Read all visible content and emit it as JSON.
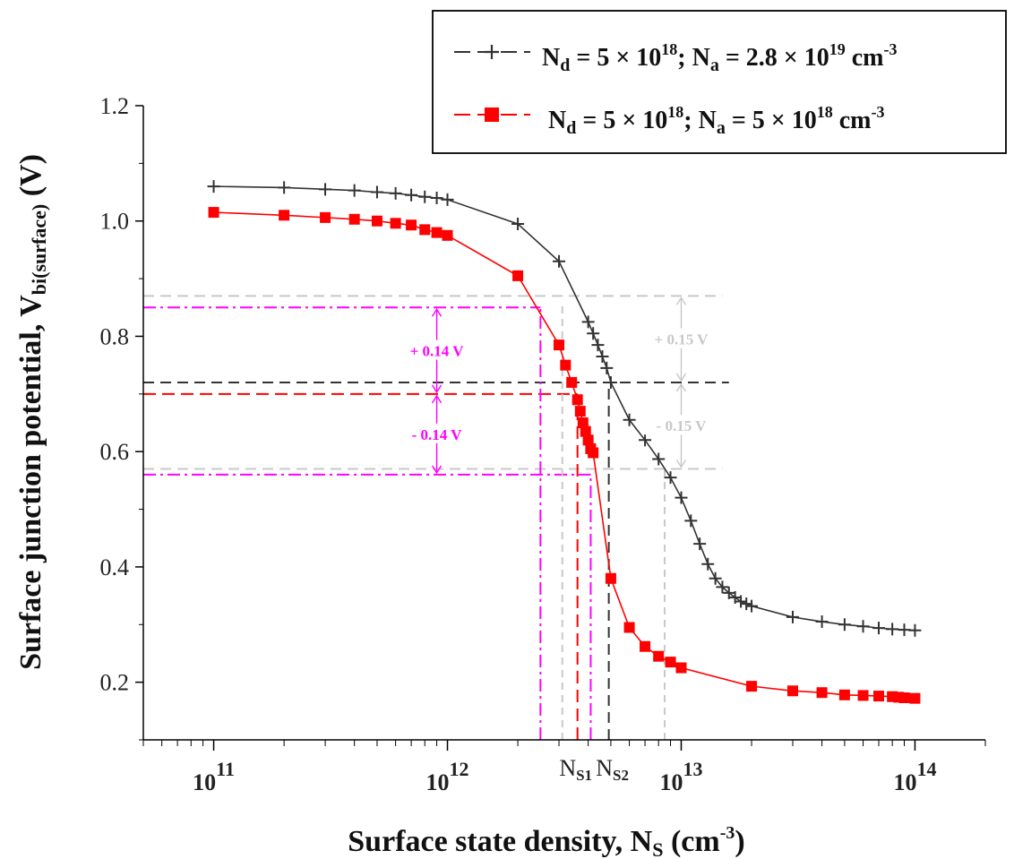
{
  "chart_data": {
    "type": "line",
    "xscale": "log",
    "xlim": [
      50000000000.0,
      200000000000000.0
    ],
    "ylim": [
      0.1,
      1.2
    ],
    "yticks": [
      "0.2",
      "0.4",
      "0.6",
      "0.8",
      "1.0",
      "1.2"
    ],
    "xticks": [
      {
        "base": "10",
        "exp": "11",
        "value": 100000000000.0
      },
      {
        "base": "10",
        "exp": "12",
        "value": 1000000000000.0
      },
      {
        "base": "10",
        "exp": "13",
        "value": 10000000000000.0
      },
      {
        "base": "10",
        "exp": "14",
        "value": 100000000000000.0
      }
    ],
    "xlabel": {
      "main": "Surface state density, N",
      "sub": "S",
      "unit_open": " (cm",
      "sup": "-3",
      "unit_close": ")"
    },
    "ylabel": {
      "main": "Surface junction potential, V",
      "sub": "bi(surface)",
      "unit": " (V)"
    },
    "legend_position": "top-right",
    "series": [
      {
        "name": "N_d = 5 × 10^18; N_a = 2.8 × 10^19 cm^-3",
        "legend_parts": {
          "n": "N",
          "d": "d",
          "eq1": " = 5 × 10",
          "e1": "18",
          "mid": "; N",
          "a": "a",
          "eq2": " = 2.8 × 10",
          "e2": "19",
          "unit": " cm",
          "e3": "-3"
        },
        "color": "#333333",
        "marker": "plus",
        "line_style": "dash",
        "x": [
          100000000000.0,
          200000000000.0,
          300000000000.0,
          400000000000.0,
          500000000000.0,
          600000000000.0,
          700000000000.0,
          800000000000.0,
          900000000000.0,
          1000000000000.0,
          2000000000000.0,
          3000000000000.0,
          4000000000000.0,
          4200000000000.0,
          4400000000000.0,
          4600000000000.0,
          4800000000000.0,
          5000000000000.0,
          6000000000000.0,
          7000000000000.0,
          8000000000000.0,
          9000000000000.0,
          10000000000000.0,
          11000000000000.0,
          12000000000000.0,
          13000000000000.0,
          14000000000000.0,
          15000000000000.0,
          16000000000000.0,
          17000000000000.0,
          18000000000000.0,
          19000000000000.0,
          20000000000000.0,
          30000000000000.0,
          40000000000000.0,
          50000000000000.0,
          60000000000000.0,
          70000000000000.0,
          80000000000000.0,
          90000000000000.0,
          100000000000000.0
        ],
        "y": [
          1.06,
          1.058,
          1.055,
          1.053,
          1.05,
          1.048,
          1.045,
          1.042,
          1.04,
          1.037,
          0.995,
          0.93,
          0.825,
          0.805,
          0.785,
          0.765,
          0.745,
          0.72,
          0.655,
          0.62,
          0.587,
          0.555,
          0.52,
          0.48,
          0.44,
          0.405,
          0.38,
          0.365,
          0.355,
          0.347,
          0.34,
          0.336,
          0.332,
          0.313,
          0.305,
          0.3,
          0.297,
          0.294,
          0.292,
          0.291,
          0.29
        ]
      },
      {
        "name": "N_d = 5 × 10^18; N_a = 5 × 10^18 cm^-3",
        "legend_parts": {
          "n": "N",
          "d": "d",
          "eq1": " = 5 × 10",
          "e1": "18",
          "mid": "; N",
          "a": "a",
          "eq2": " = 5 × 10",
          "e2": "18",
          "unit": " cm",
          "e3": "-3"
        },
        "color": "#ff0000",
        "marker": "square",
        "line_style": "dash",
        "x": [
          100000000000.0,
          200000000000.0,
          300000000000.0,
          400000000000.0,
          500000000000.0,
          600000000000.0,
          700000000000.0,
          800000000000.0,
          900000000000.0,
          1000000000000.0,
          2000000000000.0,
          3000000000000.0,
          3200000000000.0,
          3400000000000.0,
          3600000000000.0,
          3700000000000.0,
          3800000000000.0,
          3900000000000.0,
          4000000000000.0,
          4100000000000.0,
          4200000000000.0,
          5000000000000.0,
          6000000000000.0,
          7000000000000.0,
          8000000000000.0,
          9000000000000.0,
          10000000000000.0,
          20000000000000.0,
          30000000000000.0,
          40000000000000.0,
          50000000000000.0,
          60000000000000.0,
          70000000000000.0,
          80000000000000.0,
          85000000000000.0,
          90000000000000.0,
          100000000000000.0
        ],
        "y": [
          1.015,
          1.01,
          1.006,
          1.003,
          1.0,
          0.996,
          0.993,
          0.985,
          0.98,
          0.975,
          0.905,
          0.785,
          0.75,
          0.72,
          0.69,
          0.67,
          0.65,
          0.635,
          0.62,
          0.605,
          0.598,
          0.38,
          0.295,
          0.262,
          0.245,
          0.235,
          0.225,
          0.193,
          0.185,
          0.182,
          0.178,
          0.177,
          0.176,
          0.175,
          0.174,
          0.173,
          0.172
        ]
      }
    ],
    "guides": [
      {
        "kind": "h",
        "y": 0.87,
        "x0": 50000000000.0,
        "x1": 15000000000000.0,
        "color": "#c8c8c8",
        "dash": "12,7"
      },
      {
        "kind": "h",
        "y": 0.72,
        "x0": 50000000000.0,
        "x1": 16000000000000.0,
        "color": "#333333",
        "dash": "12,7"
      },
      {
        "kind": "h",
        "y": 0.57,
        "x0": 50000000000.0,
        "x1": 15000000000000.0,
        "color": "#c8c8c8",
        "dash": "12,7"
      },
      {
        "kind": "h",
        "y": 0.85,
        "x0": 50000000000.0,
        "x1": 2500000000000.0,
        "color": "#ff00ff",
        "dash": "14,5,3,5"
      },
      {
        "kind": "h",
        "y": 0.7,
        "x0": 50000000000.0,
        "x1": 3600000000000.0,
        "color": "#ff0000",
        "dash": "14,7"
      },
      {
        "kind": "h",
        "y": 0.56,
        "x0": 50000000000.0,
        "x1": 4100000000000.0,
        "color": "#ff00ff",
        "dash": "14,5,3,5"
      },
      {
        "kind": "v",
        "x": 3600000000000.0,
        "y0": 0.1,
        "y1": 0.7,
        "color": "#ff0000",
        "dash": "14,7"
      },
      {
        "kind": "v",
        "x": 4900000000000.0,
        "y0": 0.1,
        "y1": 0.72,
        "color": "#333333",
        "dash": "12,7"
      },
      {
        "kind": "v",
        "x": 2500000000000.0,
        "y0": 0.1,
        "y1": 0.85,
        "color": "#ff00ff",
        "dash": "14,5,3,5"
      },
      {
        "kind": "v",
        "x": 4100000000000.0,
        "y0": 0.1,
        "y1": 0.56,
        "color": "#ff00ff",
        "dash": "14,5,3,5"
      },
      {
        "kind": "v",
        "x": 3100000000000.0,
        "y0": 0.1,
        "y1": 0.86,
        "color": "#c8c8c8",
        "dash": "8,6"
      },
      {
        "kind": "v",
        "x": 8500000000000.0,
        "y0": 0.1,
        "y1": 0.57,
        "color": "#c8c8c8",
        "dash": "8,6"
      }
    ],
    "annotations": [
      {
        "text": "+ 0.14 V",
        "color": "#ff00ff",
        "x": 1500000000000.0,
        "y": 0.775,
        "arrow_x": 900000000000.0,
        "arrow_from": 0.85,
        "arrow_to": 0.7
      },
      {
        "text": "- 0.14 V",
        "color": "#ff00ff",
        "x": 1500000000000.0,
        "y": 0.635,
        "arrow_x": 900000000000.0,
        "arrow_from": 0.7,
        "arrow_to": 0.56
      },
      {
        "text": "+ 0.15 V",
        "color": "#c8c8c8",
        "x": 23000000000000.0,
        "y": 0.795,
        "arrow_x": 10000000000000.0,
        "arrow_from": 0.87,
        "arrow_to": 0.72
      },
      {
        "text": "- 0.15 V",
        "color": "#c8c8c8",
        "x": 23000000000000.0,
        "y": 0.645,
        "arrow_x": 10000000000000.0,
        "arrow_from": 0.72,
        "arrow_to": 0.57
      }
    ],
    "ns_labels": [
      {
        "n": "N",
        "sub": "S1",
        "x": 3600000000000.0
      },
      {
        "n": "N",
        "sub": "S2",
        "x": 4900000000000.0
      }
    ]
  }
}
